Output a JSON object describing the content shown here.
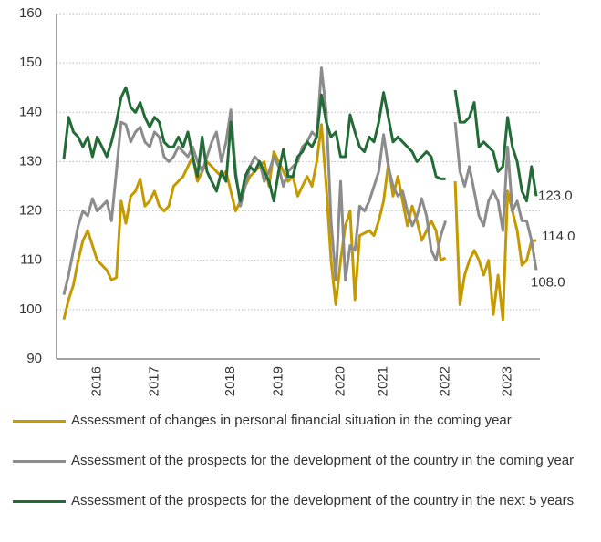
{
  "chart_data": {
    "type": "line",
    "categories": [
      null,
      null,
      null,
      null,
      null,
      null,
      null,
      "2016",
      null,
      null,
      null,
      null,
      null,
      null,
      null,
      null,
      null,
      null,
      null,
      "2017",
      null,
      null,
      null,
      null,
      null,
      null,
      null,
      null,
      null,
      null,
      null,
      null,
      null,
      null,
      null,
      "2018",
      null,
      null,
      null,
      null,
      null,
      null,
      null,
      null,
      null,
      "2019",
      null,
      null,
      null,
      null,
      null,
      null,
      null,
      null,
      null,
      null,
      null,
      null,
      "2020",
      null,
      null,
      null,
      null,
      null,
      null,
      null,
      null,
      "2021",
      null,
      null,
      null,
      null,
      null,
      null,
      null,
      null,
      null,
      null,
      null,
      null,
      "2022",
      null,
      null,
      null,
      null,
      null,
      null,
      null,
      null,
      null,
      null,
      null,
      null,
      "2023",
      null,
      null,
      null,
      null,
      null,
      null
    ],
    "ylim": [
      90,
      160
    ],
    "yticks": [
      90,
      100,
      110,
      120,
      130,
      140,
      150,
      160
    ],
    "grid": true,
    "series": [
      {
        "name": "Assessment of changes in personal financial situation in the coming year",
        "color": "#c49a00",
        "values": [
          98,
          102,
          105,
          110,
          114,
          116,
          113,
          110,
          109,
          108,
          106,
          106.5,
          122,
          117.5,
          123,
          124,
          126.5,
          121,
          122,
          124,
          121,
          120,
          121,
          125,
          126,
          127,
          129,
          131,
          126,
          128,
          130,
          129,
          128,
          127,
          128,
          124,
          120,
          122,
          125,
          127,
          128,
          129,
          130,
          125,
          132,
          130,
          128,
          126,
          127,
          123,
          125,
          127,
          125,
          130,
          137.5,
          125,
          110,
          101,
          110,
          117,
          120,
          102,
          115,
          115.5,
          116,
          115,
          118,
          122,
          129.5,
          123,
          127,
          122,
          117,
          121,
          118,
          114,
          116,
          118,
          116,
          110,
          110.5,
          null,
          126,
          101,
          107,
          110,
          112,
          110,
          107,
          110,
          99,
          107,
          98,
          124,
          120,
          116,
          109,
          110,
          114,
          114
        ],
        "value_labels": [
          null,
          null,
          null,
          null,
          null,
          null,
          null,
          null,
          null,
          null,
          null,
          null,
          null,
          null,
          null,
          null,
          null,
          null,
          null,
          null,
          null,
          null,
          null,
          null,
          null,
          null,
          null,
          null,
          null,
          null,
          null,
          null,
          null,
          null,
          null,
          null,
          null,
          null,
          null,
          null,
          null,
          null,
          null,
          null,
          null,
          null,
          null,
          null,
          null,
          null,
          null,
          null,
          null,
          null,
          null,
          null,
          null,
          null,
          null,
          null,
          null,
          null,
          null,
          null,
          null,
          null,
          null,
          null,
          null,
          null,
          null,
          null,
          null,
          null,
          null,
          null,
          null,
          null,
          null,
          null,
          null,
          null,
          null,
          null,
          null,
          null,
          null,
          null,
          null,
          null,
          null,
          null,
          null,
          null,
          null,
          null,
          null,
          null,
          null,
          "114.0"
        ]
      },
      {
        "name": "Assessment of the prospects for the development of the country in the coming year",
        "color": "#8c8c8c",
        "values": [
          103,
          107,
          112,
          117,
          120,
          119,
          122.5,
          120,
          121,
          122,
          118,
          128,
          138,
          137.5,
          134,
          136,
          137,
          134,
          133,
          136,
          135,
          131,
          130,
          131,
          133,
          132,
          131,
          133,
          130,
          128,
          131,
          134,
          136,
          130,
          134,
          140.5,
          128,
          121,
          125,
          129,
          131,
          130,
          126,
          128,
          131,
          129,
          125,
          128,
          129,
          130,
          133,
          134,
          136,
          135,
          149,
          140,
          118,
          106,
          126,
          106,
          113,
          112,
          121,
          120,
          122,
          125,
          128,
          135.5,
          129,
          125,
          123,
          124,
          120,
          117,
          119,
          122.5,
          119,
          112,
          110,
          115,
          118,
          null,
          138,
          128,
          125,
          129,
          124,
          119,
          117,
          122,
          124,
          122,
          116,
          133,
          120,
          122,
          118,
          118,
          114,
          108
        ],
        "value_labels": [
          null,
          null,
          null,
          null,
          null,
          null,
          null,
          null,
          null,
          null,
          null,
          null,
          null,
          null,
          null,
          null,
          null,
          null,
          null,
          null,
          null,
          null,
          null,
          null,
          null,
          null,
          null,
          null,
          null,
          null,
          null,
          null,
          null,
          null,
          null,
          null,
          null,
          null,
          null,
          null,
          null,
          null,
          null,
          null,
          null,
          null,
          null,
          null,
          null,
          null,
          null,
          null,
          null,
          null,
          null,
          null,
          null,
          null,
          null,
          null,
          null,
          null,
          null,
          null,
          null,
          null,
          null,
          null,
          null,
          null,
          null,
          null,
          null,
          null,
          null,
          null,
          null,
          null,
          null,
          null,
          null,
          null,
          null,
          null,
          null,
          null,
          null,
          null,
          null,
          null,
          null,
          null,
          null,
          null,
          null,
          null,
          null,
          null,
          null,
          "108.0"
        ]
      },
      {
        "name": "Assessment of the prospects for the development of the country in the next 5 years",
        "color": "#236b37",
        "values": [
          130.5,
          139,
          136,
          135,
          133,
          135,
          131,
          135,
          133,
          131,
          134,
          138,
          143,
          145,
          141,
          140,
          142,
          139,
          137,
          139,
          138,
          134,
          133,
          133,
          135,
          133,
          136,
          131,
          127,
          135,
          128,
          126,
          124,
          128,
          126,
          138,
          127,
          122,
          127,
          129,
          128,
          130,
          128,
          126,
          122,
          128,
          132.5,
          127,
          127,
          131,
          132,
          134,
          133,
          135,
          143.5,
          138,
          135,
          136,
          131,
          131,
          139.5,
          136,
          133,
          132,
          135,
          134,
          138,
          144,
          139,
          134,
          135,
          134,
          133,
          132,
          130,
          131,
          132,
          131,
          127,
          126.5,
          126.5,
          null,
          144.5,
          138,
          138,
          139,
          142,
          133,
          134,
          133,
          132,
          128,
          129,
          139,
          133,
          130,
          124,
          122,
          129,
          123
        ],
        "value_labels": [
          null,
          null,
          null,
          null,
          null,
          null,
          null,
          null,
          null,
          null,
          null,
          null,
          null,
          null,
          null,
          null,
          null,
          null,
          null,
          null,
          null,
          null,
          null,
          null,
          null,
          null,
          null,
          null,
          null,
          null,
          null,
          null,
          null,
          null,
          null,
          null,
          null,
          null,
          null,
          null,
          null,
          null,
          null,
          null,
          null,
          null,
          null,
          null,
          null,
          null,
          null,
          null,
          null,
          null,
          null,
          null,
          null,
          null,
          null,
          null,
          null,
          null,
          null,
          null,
          null,
          null,
          null,
          null,
          null,
          null,
          null,
          null,
          null,
          null,
          null,
          null,
          null,
          null,
          null,
          null,
          null,
          null,
          null,
          null,
          null,
          null,
          null,
          null,
          null,
          null,
          null,
          null,
          null,
          null,
          null,
          null,
          null,
          null,
          null,
          "123.0"
        ]
      }
    ]
  }
}
